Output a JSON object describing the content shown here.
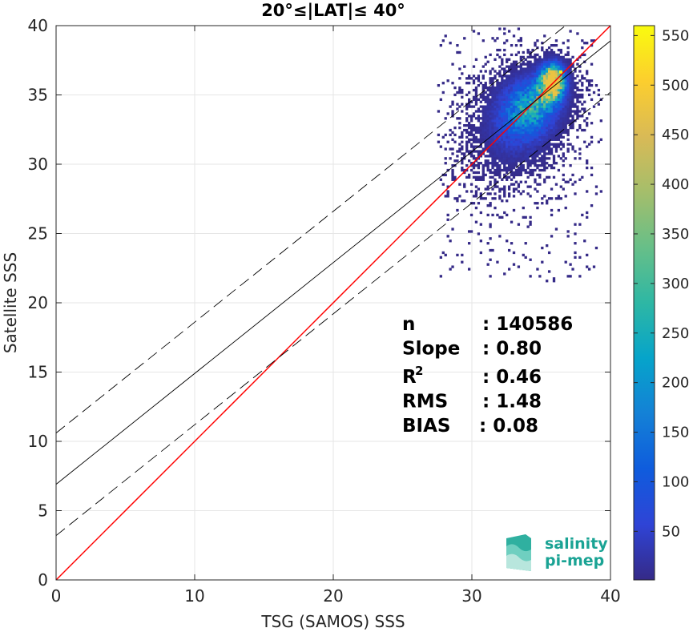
{
  "chart_data": {
    "type": "heatmap",
    "title": "20°≤|LAT|≤ 40°",
    "xlabel": "TSG (SAMOS) SSS",
    "ylabel": "Satellite SSS",
    "xlim": [
      0,
      40
    ],
    "ylim": [
      0,
      40
    ],
    "xticks": [
      "0",
      "10",
      "20",
      "30",
      "40"
    ],
    "yticks": [
      "0",
      "5",
      "10",
      "15",
      "20",
      "25",
      "30",
      "35",
      "40"
    ],
    "grid": true,
    "colorbar": {
      "range": [
        1,
        560
      ],
      "ticks": [
        "50",
        "100",
        "150",
        "200",
        "250",
        "300",
        "350",
        "400",
        "450",
        "500",
        "550"
      ],
      "colormap": "parula"
    },
    "density_clusters": [
      {
        "x": 35.8,
        "y": 36.0,
        "sx": 0.7,
        "sy": 1.0,
        "weight": 1.0
      },
      {
        "x": 34.5,
        "y": 34.5,
        "sx": 1.6,
        "sy": 1.6,
        "weight": 0.5
      },
      {
        "x": 33.5,
        "y": 33.0,
        "sx": 1.8,
        "sy": 2.0,
        "weight": 0.35
      },
      {
        "x": 32.0,
        "y": 31.5,
        "sx": 2.0,
        "sy": 2.5,
        "weight": 0.15
      }
    ],
    "peak_point": {
      "x": 36.3,
      "y": 36.6,
      "count": 550
    },
    "series": [
      {
        "type": "identity",
        "color": "#ff0000",
        "x": [
          0,
          40
        ],
        "y": [
          0,
          40
        ]
      },
      {
        "type": "fit",
        "color": "#000000",
        "slope": 0.8,
        "intercept": 6.9
      },
      {
        "type": "fit-upper",
        "color": "#000000",
        "dash": true,
        "slope": 0.8,
        "intercept": 10.6
      },
      {
        "type": "fit-lower",
        "color": "#000000",
        "dash": true,
        "slope": 0.8,
        "intercept": 3.2
      }
    ],
    "stats": [
      {
        "label": "n",
        "value": ": 140586"
      },
      {
        "label": "Slope",
        "value": ": 0.80"
      },
      {
        "label": "R",
        "sup": "2",
        "value": ": 0.46"
      },
      {
        "label": "RMS",
        "value": ": 1.48"
      },
      {
        "label": "BIAS",
        "value": ": 0.08"
      }
    ]
  },
  "logo": {
    "line1": "salinity",
    "line2": "pi-mep"
  },
  "colors": {
    "identity": "#ff0000",
    "fit": "#000000",
    "grid": "#e6e6e6",
    "logo": "#1aa394"
  }
}
